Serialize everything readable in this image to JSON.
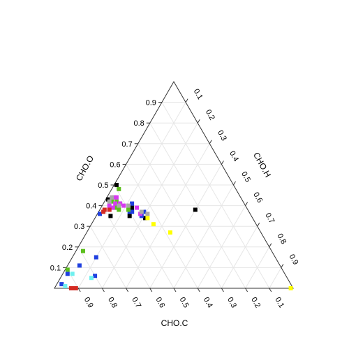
{
  "chart_data": {
    "type": "scatter",
    "subtype": "ternary",
    "title": "",
    "axes": {
      "left": {
        "label": "CHO.O",
        "ticks": [
          "0.1",
          "0.2",
          "0.3",
          "0.4",
          "0.5",
          "0.6",
          "0.7",
          "0.8",
          "0.9"
        ]
      },
      "right": {
        "label": "CHO.H",
        "ticks": [
          "0.1",
          "0.2",
          "0.3",
          "0.4",
          "0.5",
          "0.6",
          "0.7",
          "0.8",
          "0.9"
        ]
      },
      "bottom": {
        "label": "CHO.C",
        "ticks": [
          "0.9",
          "0.8",
          "0.7",
          "0.6",
          "0.5",
          "0.4",
          "0.3",
          "0.2",
          "0.1"
        ]
      }
    },
    "grid": true,
    "legend": "none",
    "marker": "square",
    "colors": {
      "black": "#000000",
      "blue": "#1f3fe0",
      "green": "#5cbf1e",
      "magenta": "#d63af0",
      "gray": "#a8a8a8",
      "red": "#d42a22",
      "yellow": "#ffff00",
      "cyan": "#6ff0f0"
    },
    "points": [
      {
        "c": 0.49,
        "h": 0.01,
        "o": 0.5,
        "color": "black"
      },
      {
        "c": 0.22,
        "h": 0.4,
        "o": 0.38,
        "color": "black"
      },
      {
        "c": 0.49,
        "h": 0.12,
        "o": 0.39,
        "color": "black"
      },
      {
        "c": 0.48,
        "h": 0.13,
        "o": 0.39,
        "color": "black"
      },
      {
        "c": 0.56,
        "h": 0.01,
        "o": 0.43,
        "color": "black"
      },
      {
        "c": 0.51,
        "h": 0.14,
        "o": 0.35,
        "color": "black"
      },
      {
        "c": 0.59,
        "h": 0.06,
        "o": 0.35,
        "color": "black"
      },
      {
        "c": 0.45,
        "h": 0.21,
        "o": 0.34,
        "color": "black"
      },
      {
        "c": 0.52,
        "h": 0.07,
        "o": 0.41,
        "color": "blue"
      },
      {
        "c": 0.53,
        "h": 0.06,
        "o": 0.41,
        "color": "blue"
      },
      {
        "c": 0.47,
        "h": 0.12,
        "o": 0.41,
        "color": "blue"
      },
      {
        "c": 0.44,
        "h": 0.19,
        "o": 0.37,
        "color": "blue"
      },
      {
        "c": 0.5,
        "h": 0.13,
        "o": 0.37,
        "color": "blue"
      },
      {
        "c": 0.63,
        "h": 0.01,
        "o": 0.36,
        "color": "blue"
      },
      {
        "c": 0.49,
        "h": 0.14,
        "o": 0.37,
        "color": "blue"
      },
      {
        "c": 0.46,
        "h": 0.19,
        "o": 0.35,
        "color": "blue"
      },
      {
        "c": 0.75,
        "h": 0.1,
        "o": 0.15,
        "color": "blue"
      },
      {
        "c": 0.91,
        "h": 0.02,
        "o": 0.07,
        "color": "blue"
      },
      {
        "c": 0.84,
        "h": 0.05,
        "o": 0.11,
        "color": "blue"
      },
      {
        "c": 0.8,
        "h": 0.14,
        "o": 0.06,
        "color": "blue"
      },
      {
        "c": 0.96,
        "h": 0.02,
        "o": 0.02,
        "color": "blue"
      },
      {
        "c": 0.55,
        "h": 0.03,
        "o": 0.42,
        "color": "green"
      },
      {
        "c": 0.53,
        "h": 0.05,
        "o": 0.42,
        "color": "green"
      },
      {
        "c": 0.55,
        "h": 0.06,
        "o": 0.39,
        "color": "green"
      },
      {
        "c": 0.54,
        "h": 0.08,
        "o": 0.38,
        "color": "green"
      },
      {
        "c": 0.5,
        "h": 0.12,
        "o": 0.38,
        "color": "green"
      },
      {
        "c": 0.54,
        "h": 0.06,
        "o": 0.4,
        "color": "green"
      },
      {
        "c": 0.49,
        "h": 0.03,
        "o": 0.48,
        "color": "green"
      },
      {
        "c": 0.79,
        "h": 0.03,
        "o": 0.18,
        "color": "green"
      },
      {
        "c": 0.9,
        "h": 0.01,
        "o": 0.09,
        "color": "green"
      },
      {
        "c": 0.52,
        "h": 0.04,
        "o": 0.44,
        "color": "magenta"
      },
      {
        "c": 0.54,
        "h": 0.05,
        "o": 0.41,
        "color": "magenta"
      },
      {
        "c": 0.56,
        "h": 0.05,
        "o": 0.39,
        "color": "magenta"
      },
      {
        "c": 0.58,
        "h": 0.04,
        "o": 0.38,
        "color": "magenta"
      },
      {
        "c": 0.57,
        "h": 0.03,
        "o": 0.4,
        "color": "magenta"
      },
      {
        "c": 0.52,
        "h": 0.07,
        "o": 0.41,
        "color": "magenta"
      },
      {
        "c": 0.51,
        "h": 0.09,
        "o": 0.4,
        "color": "magenta"
      },
      {
        "c": 0.46,
        "h": 0.15,
        "o": 0.39,
        "color": "magenta"
      },
      {
        "c": 0.46,
        "h": 0.18,
        "o": 0.36,
        "color": "magenta"
      },
      {
        "c": 0.53,
        "h": 0.03,
        "o": 0.44,
        "color": "magenta"
      },
      {
        "c": 0.54,
        "h": 0.02,
        "o": 0.44,
        "color": "gray"
      },
      {
        "c": 0.53,
        "h": 0.07,
        "o": 0.4,
        "color": "gray"
      },
      {
        "c": 0.56,
        "h": 0.02,
        "o": 0.42,
        "color": "gray"
      },
      {
        "c": 0.45,
        "h": 0.18,
        "o": 0.37,
        "color": "gray"
      },
      {
        "c": 0.43,
        "h": 0.21,
        "o": 0.36,
        "color": "gray"
      },
      {
        "c": 0.49,
        "h": 0.11,
        "o": 0.4,
        "color": "gray"
      },
      {
        "c": 0.58,
        "h": 0.04,
        "o": 0.38,
        "color": "red"
      },
      {
        "c": 0.61,
        "h": 0.02,
        "o": 0.37,
        "color": "red"
      },
      {
        "c": 0.6,
        "h": 0.02,
        "o": 0.38,
        "color": "red"
      },
      {
        "c": 0.93,
        "h": 0.07,
        "o": 0.0,
        "color": "red"
      },
      {
        "c": 0.92,
        "h": 0.08,
        "o": 0.0,
        "color": "red"
      },
      {
        "c": 0.91,
        "h": 0.09,
        "o": 0.0,
        "color": "red"
      },
      {
        "c": 0.38,
        "h": 0.35,
        "o": 0.27,
        "color": "yellow"
      },
      {
        "c": 0.43,
        "h": 0.26,
        "o": 0.31,
        "color": "yellow"
      },
      {
        "c": 0.44,
        "h": 0.22,
        "o": 0.34,
        "color": "yellow"
      },
      {
        "c": 0.01,
        "h": 0.99,
        "o": 0.0,
        "color": "yellow"
      },
      {
        "c": 0.82,
        "h": 0.13,
        "o": 0.05,
        "color": "cyan"
      },
      {
        "c": 0.95,
        "h": 0.04,
        "o": 0.01,
        "color": "cyan"
      },
      {
        "c": 0.89,
        "h": 0.04,
        "o": 0.07,
        "color": "cyan"
      }
    ]
  }
}
